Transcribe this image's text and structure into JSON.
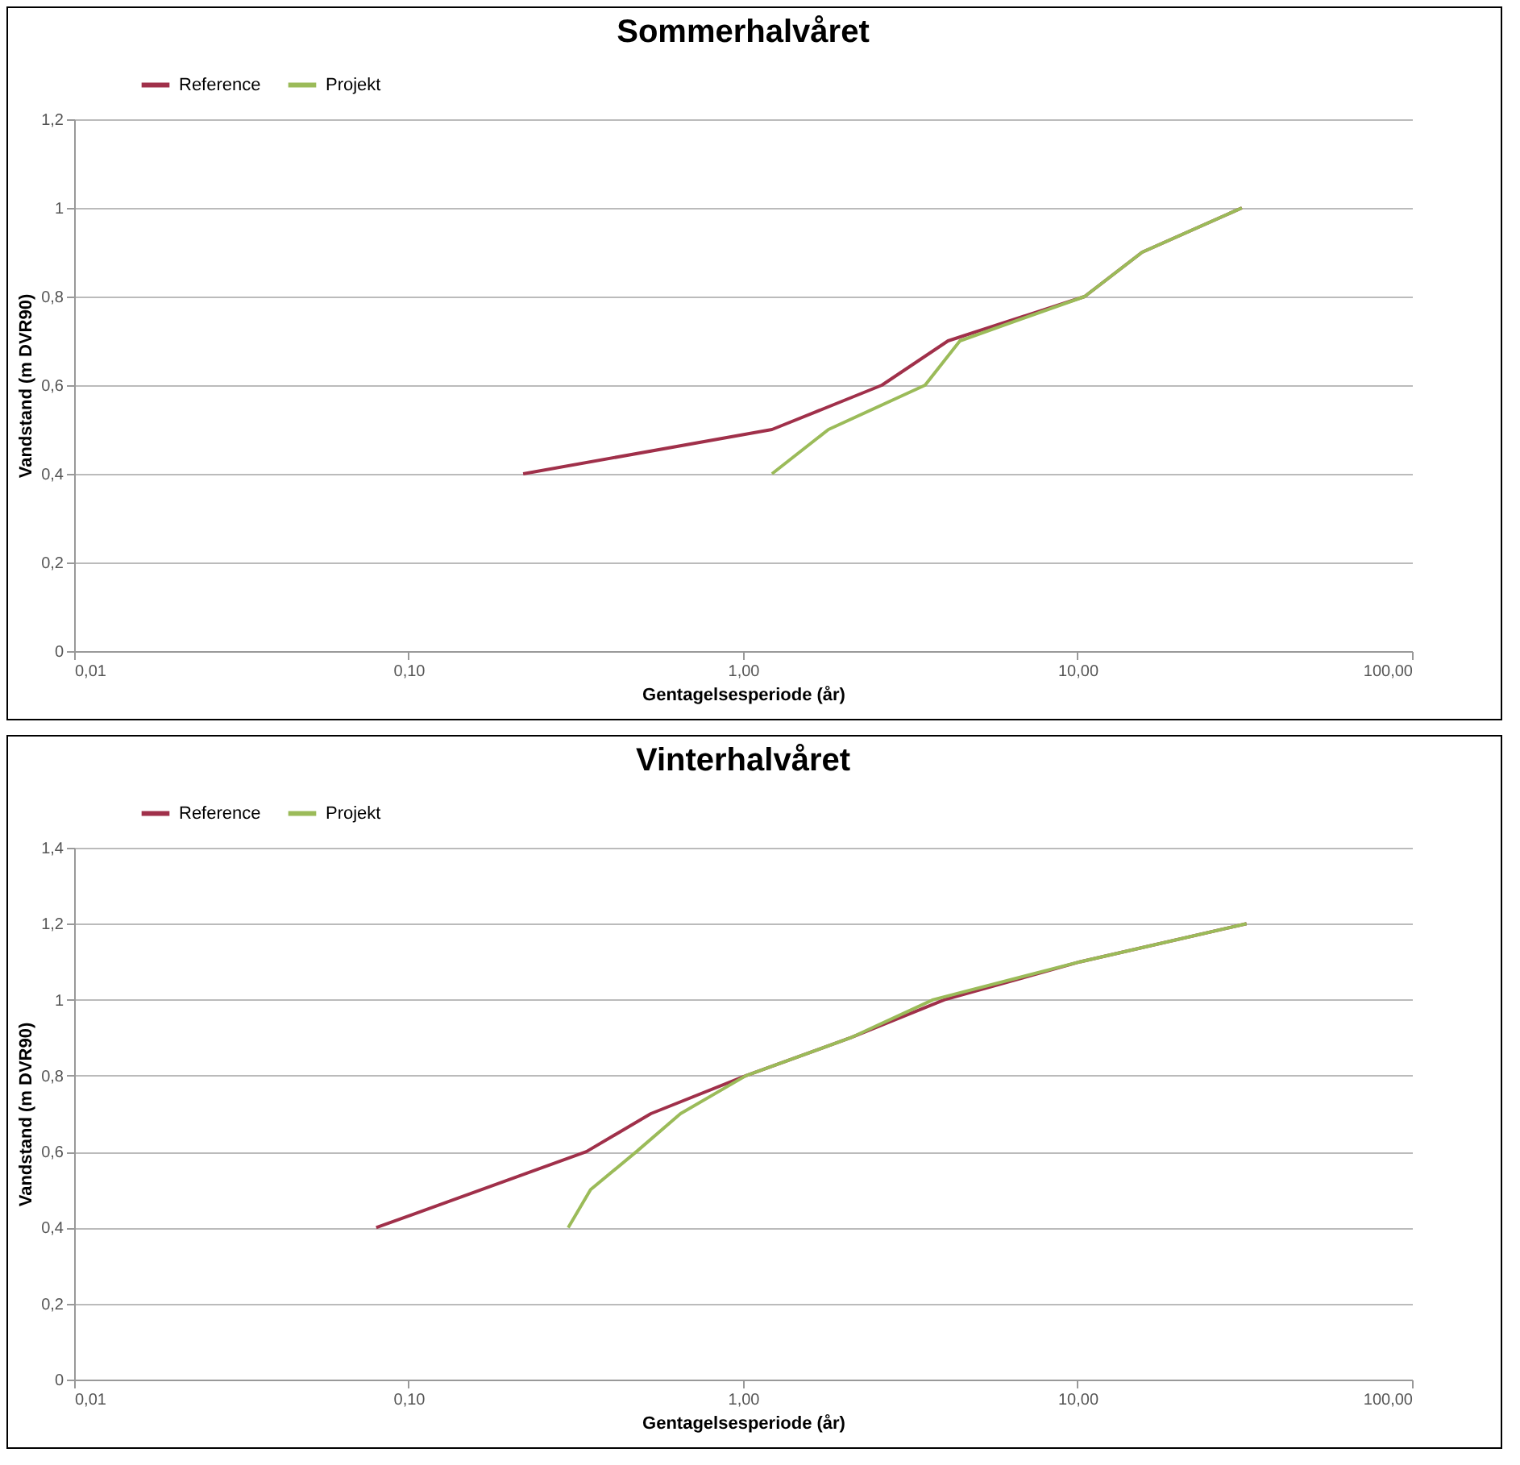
{
  "chart_data": [
    {
      "type": "line",
      "title": "Sommerhalvåret",
      "xlabel": "Gentagelsesperiode (år)",
      "ylabel": "Vandstand (m DVR90)",
      "log": "x",
      "grid": "y",
      "legend": "top left",
      "xlim": [
        0.01,
        100
      ],
      "ylim": [
        0,
        1.2
      ],
      "xticks": [
        {
          "value": 0.01,
          "label": "0,01"
        },
        {
          "value": 0.1,
          "label": "0,10"
        },
        {
          "value": 1,
          "label": "1,00"
        },
        {
          "value": 10,
          "label": "10,00"
        },
        {
          "value": 100,
          "label": "100,00"
        }
      ],
      "yticks": [
        {
          "value": 0,
          "label": "0"
        },
        {
          "value": 0.2,
          "label": "0,2"
        },
        {
          "value": 0.4,
          "label": "0,4"
        },
        {
          "value": 0.6,
          "label": "0,6"
        },
        {
          "value": 0.8,
          "label": "0,8"
        },
        {
          "value": 1,
          "label": "1"
        },
        {
          "value": 1.2,
          "label": "1,2"
        }
      ],
      "series": [
        {
          "name": "Reference",
          "color": "#a0304a",
          "x": [
            0.22,
            1.22,
            2.6,
            4.1,
            10.5,
            15.6,
            31
          ],
          "values": [
            0.4,
            0.5,
            0.6,
            0.7,
            0.8,
            0.9,
            1.0
          ]
        },
        {
          "name": "Projekt",
          "color": "#9bbb59",
          "x": [
            1.22,
            1.8,
            3.5,
            4.45,
            10.5,
            15.6,
            31
          ],
          "values": [
            0.4,
            0.5,
            0.6,
            0.7,
            0.8,
            0.9,
            1.0
          ]
        }
      ]
    },
    {
      "type": "line",
      "title": "Vinterhalvåret",
      "xlabel": "Gentagelsesperiode (år)",
      "ylabel": "Vandstand (m DVR90)",
      "log": "x",
      "grid": "y",
      "legend": "top left",
      "xlim": [
        0.01,
        100
      ],
      "ylim": [
        0,
        1.4
      ],
      "xticks": [
        {
          "value": 0.01,
          "label": "0,01"
        },
        {
          "value": 0.1,
          "label": "0,10"
        },
        {
          "value": 1,
          "label": "1,00"
        },
        {
          "value": 10,
          "label": "10,00"
        },
        {
          "value": 100,
          "label": "100,00"
        }
      ],
      "yticks": [
        {
          "value": 0,
          "label": "0"
        },
        {
          "value": 0.2,
          "label": "0,2"
        },
        {
          "value": 0.4,
          "label": "0,4"
        },
        {
          "value": 0.6,
          "label": "0,6"
        },
        {
          "value": 0.8,
          "label": "0,8"
        },
        {
          "value": 1,
          "label": "1"
        },
        {
          "value": 1.2,
          "label": "1,2"
        },
        {
          "value": 1.4,
          "label": "1,4"
        }
      ],
      "series": [
        {
          "name": "Reference",
          "color": "#a0304a",
          "x": [
            0.08,
            0.34,
            0.53,
            1.02,
            2.1,
            4.0,
            10.2,
            32
          ],
          "values": [
            0.4,
            0.6,
            0.7,
            0.8,
            0.9,
            1.0,
            1.1,
            1.2
          ]
        },
        {
          "name": "Projekt",
          "color": "#9bbb59",
          "x": [
            0.3,
            0.35,
            0.48,
            0.65,
            1.02,
            2.1,
            3.7,
            10.2,
            32
          ],
          "values": [
            0.4,
            0.5,
            0.6,
            0.7,
            0.8,
            0.9,
            1.0,
            1.1,
            1.2
          ]
        }
      ]
    }
  ]
}
